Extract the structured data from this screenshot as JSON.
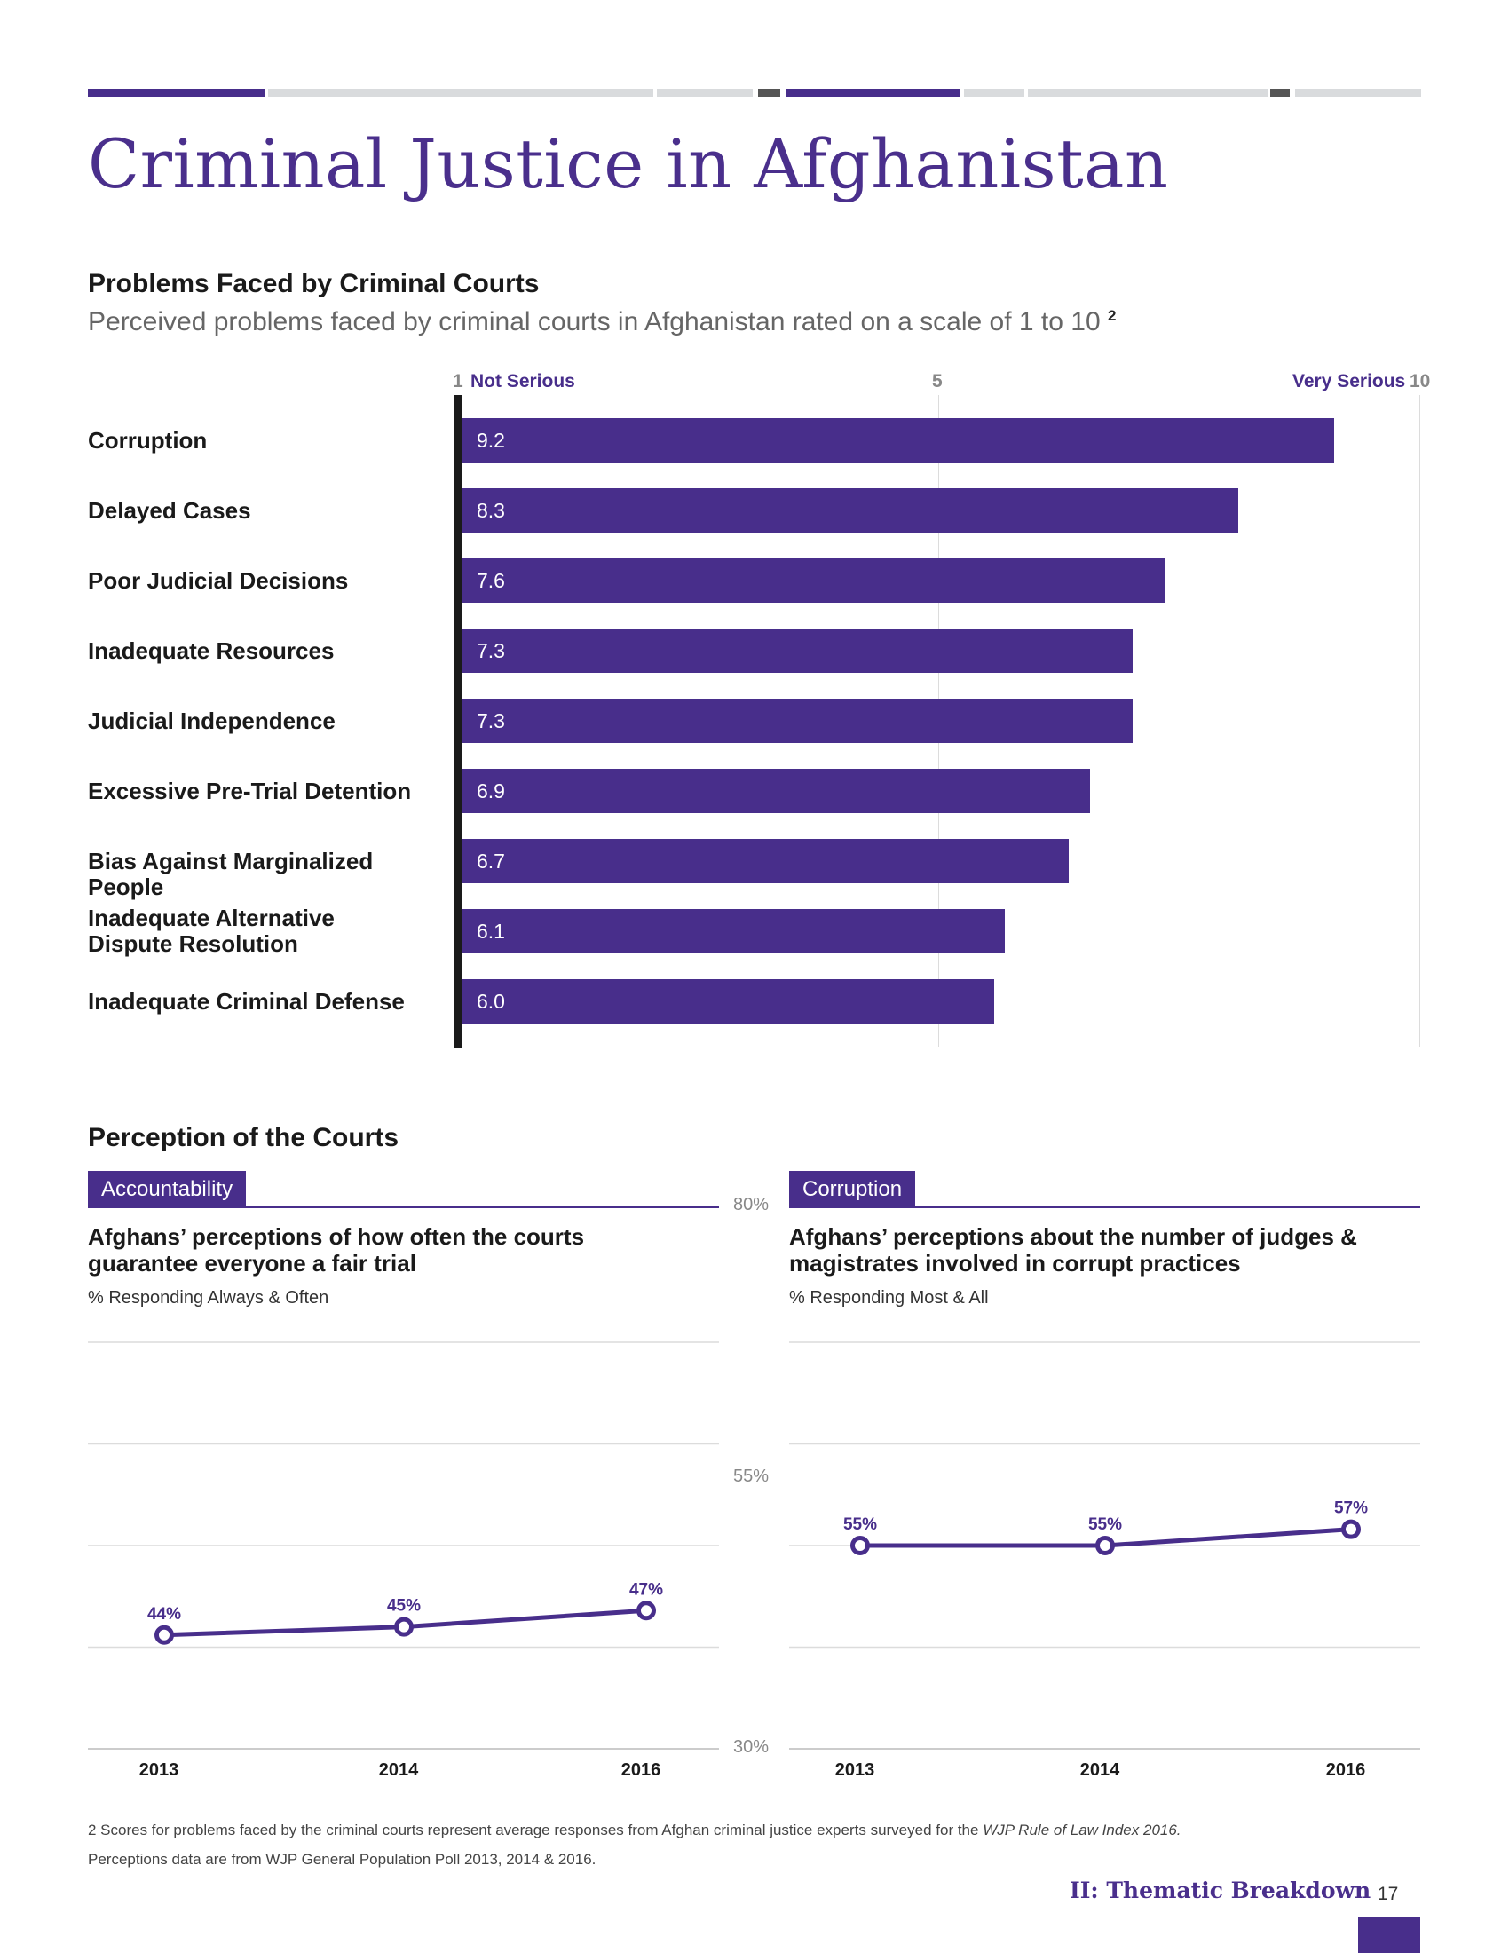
{
  "page": {
    "title": "Criminal Justice in Afghanistan",
    "footer_section": "II: Thematic Breakdown",
    "page_number": "17"
  },
  "colors": {
    "brand": "#482e8b",
    "title": "#4a2f8c",
    "grid": "#dcdcdc",
    "bar_rule": "#d9dbdd"
  },
  "bar_chart": {
    "title": "Problems Faced by Criminal Courts",
    "subtitle": "Perceived problems faced by criminal courts in Afghanistan rated on a scale of 1 to 10",
    "footnote_ref": "2",
    "scale_min_label": "1",
    "scale_min_text": "Not Serious",
    "scale_mid_label": "5",
    "scale_max_text": "Very Serious",
    "scale_max_label": "10"
  },
  "perception": {
    "title": "Perception of the Courts",
    "left_panel": {
      "tag": "Accountability",
      "title": "Afghans’ perceptions of how often the courts guarantee everyone a fair trial",
      "subtitle": "% Responding Always & Often"
    },
    "right_panel": {
      "tag": "Corruption",
      "title": "Afghans’ perceptions about the number of judges & magistrates involved in corrupt practices",
      "subtitle": "% Responding Most & All"
    },
    "axis_labels": [
      "80%",
      "55%",
      "30%"
    ]
  },
  "footnotes": {
    "line1_prefix": "2  Scores for problems faced by the criminal courts represent average responses from Afghan criminal justice experts surveyed for the",
    "line1_italic": "WJP Rule of Law Index 2016.",
    "line2": "Perceptions data are from WJP General Population Poll 2013, 2014 & 2016."
  },
  "chart_data": [
    {
      "type": "bar",
      "orientation": "horizontal",
      "title": "Problems Faced by Criminal Courts",
      "xlim": [
        1,
        10
      ],
      "categories": [
        "Corruption",
        "Delayed Cases",
        "Poor Judicial Decisions",
        "Inadequate Resources",
        "Judicial Independence",
        "Excessive Pre-Trial Detention",
        "Bias Against Marginalized People",
        "Inadequate Alternative Dispute Resolution",
        "Inadequate Criminal Defense"
      ],
      "category_lines": [
        [
          "Corruption"
        ],
        [
          "Delayed Cases"
        ],
        [
          "Poor Judicial Decisions"
        ],
        [
          "Inadequate Resources"
        ],
        [
          "Judicial Independence"
        ],
        [
          "Excessive Pre-Trial Detention"
        ],
        [
          "Bias Against Marginalized People"
        ],
        [
          "Inadequate Alternative",
          "Dispute Resolution"
        ],
        [
          "Inadequate Criminal Defense"
        ]
      ],
      "values": [
        9.2,
        8.3,
        7.6,
        7.3,
        7.3,
        6.9,
        6.7,
        6.1,
        6.0
      ],
      "value_labels": [
        "9.2",
        "8.3",
        "7.6",
        "7.3",
        "7.3",
        "6.9",
        "6.7",
        "6.1",
        "6.0"
      ]
    },
    {
      "type": "line",
      "title": "Accountability",
      "x": [
        "2013",
        "2014",
        "2016"
      ],
      "values": [
        44,
        45,
        47
      ],
      "value_labels": [
        "44%",
        "45%",
        "47%"
      ],
      "ylim": [
        30,
        80
      ],
      "yticks": [
        30,
        42.5,
        55,
        67.5,
        80
      ]
    },
    {
      "type": "line",
      "title": "Corruption",
      "x": [
        "2013",
        "2014",
        "2016"
      ],
      "values": [
        55,
        55,
        57
      ],
      "value_labels": [
        "55%",
        "55%",
        "57%"
      ],
      "ylim": [
        30,
        80
      ],
      "yticks": [
        30,
        42.5,
        55,
        67.5,
        80
      ]
    }
  ]
}
